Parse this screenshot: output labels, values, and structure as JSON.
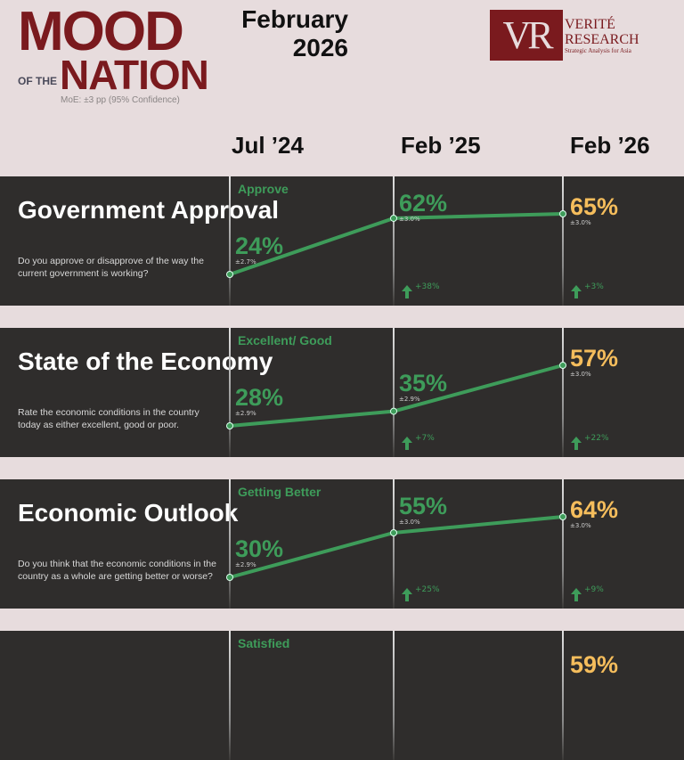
{
  "header": {
    "logo_line1": "MOOD",
    "logo_small": "OF THE",
    "logo_line2": "NATION",
    "moe": "MoE: ±3 pp (95% Confidence)",
    "edition_month": "February",
    "edition_year": "2026",
    "brand": {
      "monogram": "VR",
      "line1": "VERITÉ",
      "line2": "RESEARCH",
      "tagline": "Strategic Analysis for Asia"
    }
  },
  "columns": [
    "Jul ’24",
    "Feb ’25",
    "Feb ’26"
  ],
  "colors": {
    "accent_green": "#3e9c5a",
    "latest_yellow": "#f5bd5c",
    "brand_maroon": "#7a1a1e",
    "panel_bg": "#2f2d2c"
  },
  "chart_data": [
    {
      "type": "line",
      "title": "Government Approval",
      "question": "Do you approve or disapprove of the way the current government is working?",
      "series_name": "Approve",
      "x": [
        "Jul ’24",
        "Feb ’25",
        "Feb ’26"
      ],
      "values": [
        24,
        62,
        65
      ],
      "labels": [
        "24%",
        "62%",
        "65%"
      ],
      "moe": [
        "±2.7%",
        "±3.0%",
        "±3.0%"
      ],
      "changes": [
        "+38%",
        "+3%"
      ]
    },
    {
      "type": "line",
      "title": "State of the Economy",
      "question": "Rate the economic conditions in the country today as either excellent, good or poor.",
      "series_name": "Excellent/ Good",
      "x": [
        "Jul ’24",
        "Feb ’25",
        "Feb ’26"
      ],
      "values": [
        28,
        35,
        57
      ],
      "labels": [
        "28%",
        "35%",
        "57%"
      ],
      "moe": [
        "±2.9%",
        "±2.9%",
        "±3.0%"
      ],
      "changes": [
        "+7%",
        "+22%"
      ]
    },
    {
      "type": "line",
      "title": "Economic Outlook",
      "question": "Do you think that the economic conditions in the country as a whole are getting better or worse?",
      "series_name": "Getting Better",
      "x": [
        "Jul ’24",
        "Feb ’25",
        "Feb ’26"
      ],
      "values": [
        30,
        55,
        64
      ],
      "labels": [
        "30%",
        "55%",
        "64%"
      ],
      "moe": [
        "±2.9%",
        "±3.0%",
        "±3.0%"
      ],
      "changes": [
        "+25%",
        "+9%"
      ]
    },
    {
      "type": "line",
      "series_name": "Satisfied",
      "x": [
        "Jul ’24",
        "Feb ’25",
        "Feb ’26"
      ],
      "labels": [
        "",
        "",
        "59%"
      ],
      "partial": true
    }
  ]
}
